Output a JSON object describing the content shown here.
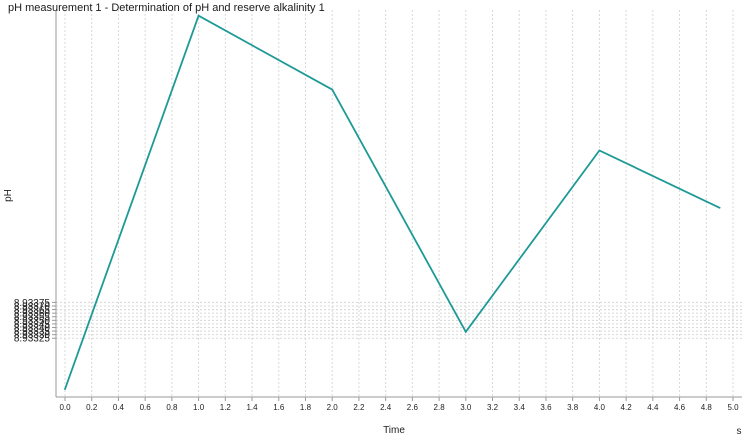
{
  "colors": {
    "series": "#1e9a96",
    "ylabel": "#1e9a96"
  },
  "chart_data": {
    "type": "line",
    "title": "pH measurement 1 - Determination of pH and reserve alkalinity  1",
    "xlabel": "Time",
    "xunit": "s",
    "ylabel": "pH",
    "xlim": [
      0,
      5.0
    ],
    "ylim": [
      8.93243,
      8.93783
    ],
    "x_ticks": [
      "0.0",
      "0.2",
      "0.4",
      "0.6",
      "0.8",
      "1.0",
      "1.2",
      "1.4",
      "1.6",
      "1.8",
      "2.0",
      "2.2",
      "2.4",
      "2.6",
      "2.8",
      "3.0",
      "3.2",
      "3.4",
      "3.6",
      "3.8",
      "4.0",
      "4.2",
      "4.4",
      "4.6",
      "4.8",
      "5.0"
    ],
    "y_ticks": [
      "8.93325",
      "8.93330",
      "8.93335",
      "8.93340",
      "8.93345",
      "8.93350",
      "8.93355",
      "8.93360",
      "8.93365",
      "8.93370",
      "8.93375"
    ],
    "grid": true,
    "series": [
      {
        "x": [
          0.0,
          1.0,
          2.0,
          3.0,
          4.0,
          4.9
        ],
        "y": [
          8.93254,
          8.93775,
          8.93672,
          8.93334,
          8.93587,
          8.93507
        ]
      }
    ]
  }
}
